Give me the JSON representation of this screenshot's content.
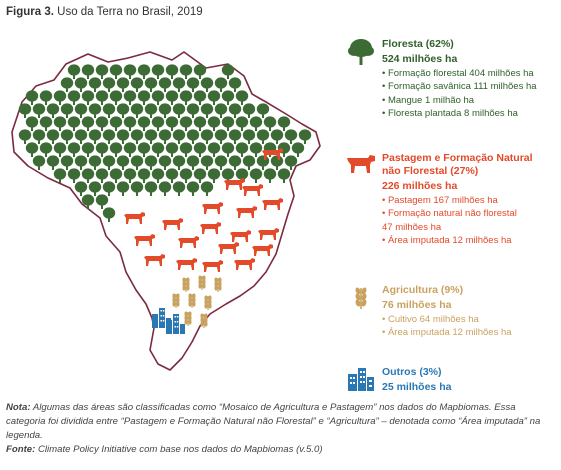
{
  "figure": {
    "label": "Figura 3.",
    "title": "Uso da Terra no Brasil, 2019"
  },
  "colors": {
    "forest": "#3c6b35",
    "pasture": "#e34a2a",
    "agriculture": "#c9a260",
    "other": "#2a78b3"
  },
  "legend": {
    "forest": {
      "icon": "tree-icon",
      "head": "Floresta (62%)",
      "total": "524 milhões ha",
      "items": [
        "Formação florestal 404 milhões ha",
        "Formação savânica 111 milhões ha",
        "Mangue 1 milhão ha",
        "Floresta plantada 8 milhões ha"
      ]
    },
    "pasture": {
      "icon": "cow-icon",
      "head_line1": "Pastagem e Formação Natural",
      "head_line2": "não Florestal (27%)",
      "total": "226 milhões ha",
      "items": [
        "Pastagem 167 milhões ha",
        "Formação natural não florestal",
        "Área imputada 12 milhões ha"
      ],
      "continuation": "47 milhões ha"
    },
    "agriculture": {
      "icon": "wheat-icon",
      "head": "Agricultura (9%)",
      "total": "76 milhões ha",
      "items": [
        "Cultivo 64 milhões ha",
        "Área imputada 12 milhões ha"
      ]
    },
    "other": {
      "icon": "buildings-icon",
      "head": "Outros (3%)",
      "total": "25 milhões ha"
    }
  },
  "note": {
    "label": "Nota:",
    "text": "Algumas das áreas são classificadas como “Mosaico de Agricultura e Pastagem” nos dados do Mapbiomas. Essa categoria foi dividida entre “Pastagem e Formação Natural não Florestal” e “Agricultura” – denotada como “Área imputada” na legenda.",
    "source_label": "Fonte:",
    "source_text": "Climate Policy Initiative com base nos dados do Mapbiomas (v.5.0)"
  }
}
